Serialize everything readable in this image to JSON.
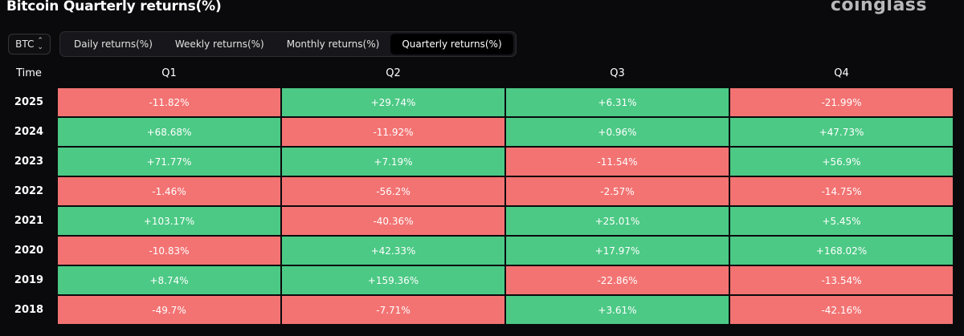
{
  "header": {
    "title": "Bitcoin Quarterly returns(%)",
    "brand": "coinglass"
  },
  "coin_select": {
    "value": "BTC",
    "icon": "chevron-up-down-icon"
  },
  "tabs": [
    {
      "label": "Daily returns(%)",
      "active": false
    },
    {
      "label": "Weekly returns(%)",
      "active": false
    },
    {
      "label": "Monthly returns(%)",
      "active": false
    },
    {
      "label": "Quarterly returns(%)",
      "active": true
    }
  ],
  "colors": {
    "positive": "#4cc985",
    "negative": "#f37373",
    "background": "#0a0a0c"
  },
  "table": {
    "columns": [
      "Time",
      "Q1",
      "Q2",
      "Q3",
      "Q4"
    ],
    "rows": [
      {
        "year": "2025",
        "values": [
          "-11.82%",
          "+29.74%",
          "+6.31%",
          "-21.99%"
        ]
      },
      {
        "year": "2024",
        "values": [
          "+68.68%",
          "-11.92%",
          "+0.96%",
          "+47.73%"
        ]
      },
      {
        "year": "2023",
        "values": [
          "+71.77%",
          "+7.19%",
          "-11.54%",
          "+56.9%"
        ]
      },
      {
        "year": "2022",
        "values": [
          "-1.46%",
          "-56.2%",
          "-2.57%",
          "-14.75%"
        ]
      },
      {
        "year": "2021",
        "values": [
          "+103.17%",
          "-40.36%",
          "+25.01%",
          "+5.45%"
        ]
      },
      {
        "year": "2020",
        "values": [
          "-10.83%",
          "+42.33%",
          "+17.97%",
          "+168.02%"
        ]
      },
      {
        "year": "2019",
        "values": [
          "+8.74%",
          "+159.36%",
          "-22.86%",
          "-13.54%"
        ]
      },
      {
        "year": "2018",
        "values": [
          "-49.7%",
          "-7.71%",
          "+3.61%",
          "-42.16%"
        ]
      }
    ]
  }
}
